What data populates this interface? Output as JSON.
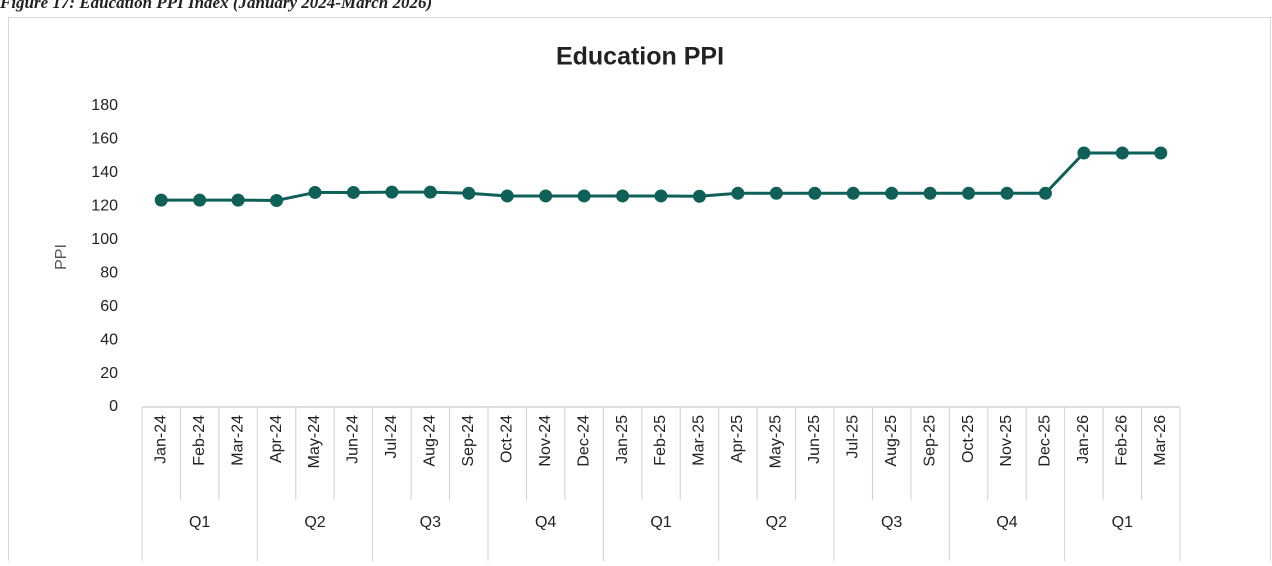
{
  "caption": "Figure 17: Education PPI Index (January 2024-March 2026)",
  "chart_data": {
    "type": "line",
    "title": "Education PPI",
    "y_label": "PPI",
    "categories": [
      "Jan-24",
      "Feb-24",
      "Mar-24",
      "Apr-24",
      "May-24",
      "Jun-24",
      "Jul-24",
      "Aug-24",
      "Sep-24",
      "Oct-24",
      "Nov-24",
      "Dec-24",
      "Jan-25",
      "Feb-25",
      "Mar-25",
      "Apr-25",
      "May-25",
      "Jun-25",
      "Jul-25",
      "Aug-25",
      "Sep-25",
      "Oct-25",
      "Nov-25",
      "Dec-25",
      "Jan-26",
      "Feb-26",
      "Mar-26"
    ],
    "quarters": [
      "Q1",
      "Q2",
      "Q3",
      "Q4",
      "Q1",
      "Q2",
      "Q3",
      "Q4",
      "Q1"
    ],
    "values": [
      123.7,
      123.7,
      123.7,
      123.5,
      128.3,
      128.3,
      128.5,
      128.5,
      127.8,
      126.2,
      126.2,
      126.2,
      126.2,
      126.2,
      126.0,
      127.8,
      127.8,
      127.8,
      127.8,
      127.8,
      127.8,
      127.8,
      127.8,
      127.8,
      151.9,
      151.9,
      151.9
    ],
    "color": "#0f6058",
    "ylim": [
      0,
      180
    ],
    "yticks": [
      0,
      20,
      40,
      60,
      80,
      100,
      120,
      140,
      160,
      180
    ],
    "grid": false
  }
}
